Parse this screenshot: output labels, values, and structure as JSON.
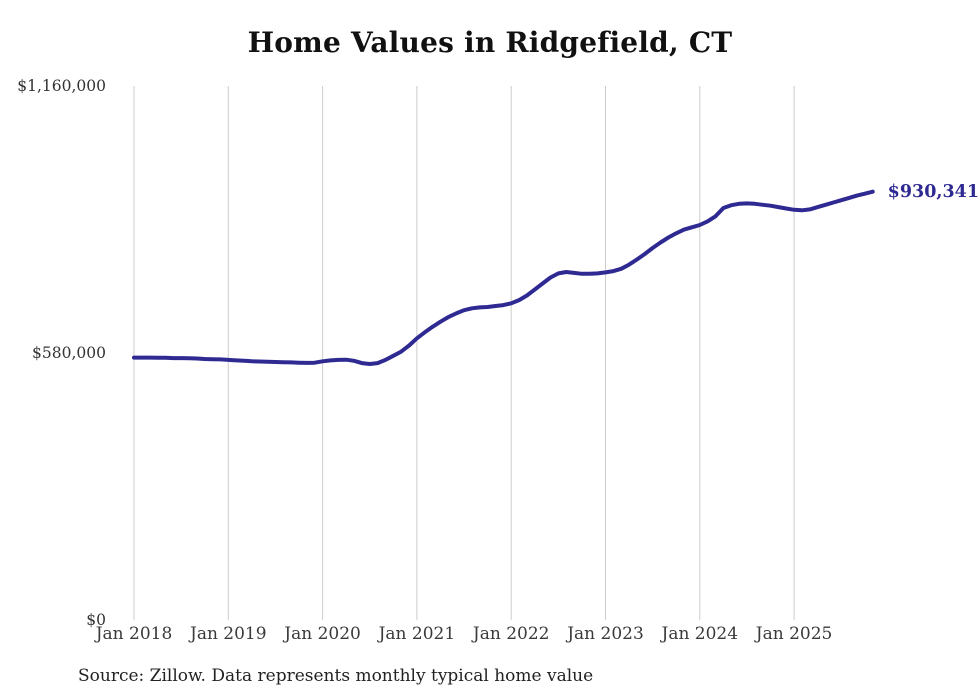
{
  "title": "Home Values in Ridgefield, CT",
  "source_note": "Source: Zillow. Data represents monthly typical home value",
  "colors": {
    "line": "#2e2a92",
    "grid": "#cccccc",
    "title_text": "#111111",
    "axis_text": "#333333",
    "note_text": "#222222"
  },
  "chart_data": {
    "type": "line",
    "title": "Home Values in Ridgefield, CT",
    "xlabel": "",
    "ylabel": "",
    "grid": "vertical-only",
    "legend": "none",
    "ylim": [
      0,
      1160000
    ],
    "x_ticks": [
      "Jan 2018",
      "Jan 2019",
      "Jan 2020",
      "Jan 2021",
      "Jan 2022",
      "Jan 2023",
      "Jan 2024",
      "Jan 2025"
    ],
    "y_ticks": [
      {
        "value": 0,
        "label": "$0"
      },
      {
        "value": 580000,
        "label": "$580,000"
      },
      {
        "value": 1160000,
        "label": "$1,160,000"
      }
    ],
    "last_value_label": "$930,341",
    "series": [
      {
        "name": "Typical home value",
        "start_month": "2018-01",
        "frequency": "monthly",
        "values": [
          570000,
          570000,
          570000,
          569500,
          569500,
          569000,
          569000,
          568500,
          568000,
          567000,
          566500,
          566000,
          565000,
          564000,
          563000,
          562000,
          561500,
          561000,
          560500,
          560000,
          559500,
          559000,
          558500,
          559000,
          562000,
          564000,
          565000,
          565500,
          563000,
          558000,
          556000,
          558000,
          565000,
          574000,
          583000,
          596000,
          612000,
          625000,
          637000,
          648000,
          658000,
          666000,
          673000,
          677000,
          679000,
          680000,
          682000,
          684000,
          688000,
          695000,
          705000,
          718000,
          731000,
          744000,
          753000,
          756000,
          754000,
          752000,
          752000,
          753000,
          755000,
          758000,
          763000,
          772000,
          783000,
          795000,
          808000,
          820000,
          831000,
          840000,
          848000,
          853000,
          858000,
          866000,
          877000,
          895000,
          901000,
          904000,
          905000,
          904000,
          902000,
          900000,
          897000,
          894000,
          891000,
          890000,
          892000,
          897000,
          902000,
          907000,
          912000,
          917000,
          922000,
          926000,
          930341
        ]
      }
    ]
  }
}
